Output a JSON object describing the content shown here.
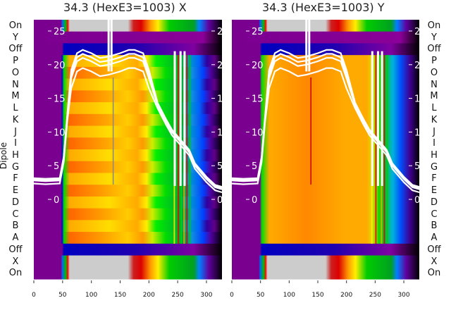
{
  "chart_data": {
    "type": "heatmap",
    "panels": [
      {
        "title": "34.3 (HexE3=1003) X"
      },
      {
        "title": "34.3 (HexE3=1003) Y"
      }
    ],
    "ylabel": "Dipole",
    "row_labels": [
      "On",
      "Y",
      "Off",
      "P",
      "O",
      "N",
      "M",
      "L",
      "K",
      "J",
      "I",
      "H",
      "G",
      "F",
      "E",
      "D",
      "C",
      "B",
      "A",
      "Off",
      "X",
      "On"
    ],
    "x_ticks": [
      "0",
      "50",
      "100",
      "150",
      "200",
      "250",
      "300"
    ],
    "xlim": [
      0,
      327
    ],
    "overlay_y_ticks": [
      "0",
      "5",
      "10",
      "15",
      "20",
      "25"
    ],
    "overlay_ylim": [
      -2.5,
      26.5
    ],
    "overlay_trace": {
      "x": [
        0,
        20,
        45,
        52,
        58,
        65,
        75,
        85,
        100,
        115,
        130,
        150,
        165,
        175,
        190,
        200,
        215,
        230,
        240,
        250,
        260,
        270,
        280,
        300,
        315,
        327
      ],
      "y": [
        2.8,
        2.7,
        2.8,
        6,
        12,
        18,
        20.5,
        21,
        20.5,
        19.8,
        20,
        20.5,
        21,
        21,
        20.5,
        18,
        14,
        11.5,
        10,
        9,
        8,
        7,
        5,
        3,
        1.8,
        1.5
      ]
    }
  }
}
